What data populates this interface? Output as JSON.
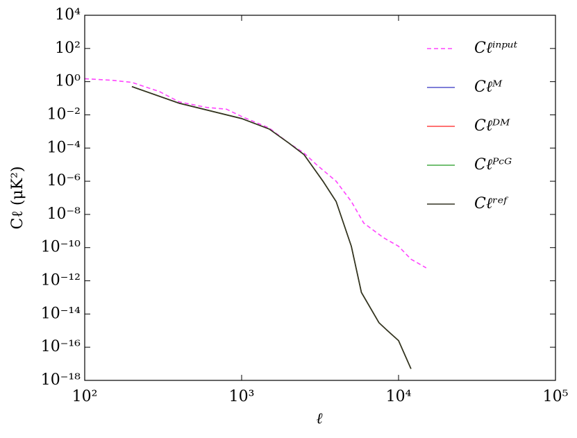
{
  "chart_data": {
    "type": "line",
    "xlabel": "ℓ",
    "ylabel": "Cℓ (μK²)",
    "xscale": "log",
    "yscale": "log",
    "xlim": [
      100,
      100000
    ],
    "ylim": [
      1e-18,
      10000
    ],
    "xticks": [
      {
        "value": 100,
        "label": "10²"
      },
      {
        "value": 1000,
        "label": "10³"
      },
      {
        "value": 10000,
        "label": "10⁴"
      },
      {
        "value": 100000,
        "label": "10⁵"
      }
    ],
    "yticks": [
      {
        "value": 1e-18,
        "label": "10⁻¹⁸"
      },
      {
        "value": 1e-16,
        "label": "10⁻¹⁶"
      },
      {
        "value": 1e-14,
        "label": "10⁻¹⁴"
      },
      {
        "value": 1e-12,
        "label": "10⁻¹²"
      },
      {
        "value": 1e-10,
        "label": "10⁻¹⁰"
      },
      {
        "value": 1e-08,
        "label": "10⁻⁸"
      },
      {
        "value": 1e-06,
        "label": "10⁻⁶"
      },
      {
        "value": 0.0001,
        "label": "10⁻⁴"
      },
      {
        "value": 0.01,
        "label": "10⁻²"
      },
      {
        "value": 1,
        "label": "10⁰"
      },
      {
        "value": 100,
        "label": "10²"
      },
      {
        "value": 10000,
        "label": "10⁴"
      }
    ],
    "legend": "upper right",
    "series": [
      {
        "name": "Cℓⁱⁿᵖᵘᵗ",
        "color": "#ff44ff",
        "dashed": true,
        "x": [
          100,
          150,
          200,
          300,
          400,
          600,
          800,
          1000,
          1500,
          2000,
          2500,
          3000,
          4000,
          5000,
          6000,
          8000,
          10000,
          12000,
          15000
        ],
        "values": [
          1.5,
          1.2,
          0.9,
          0.25,
          0.06,
          0.028,
          0.022,
          0.008,
          0.0016,
          0.0002,
          5e-05,
          1e-05,
          1e-06,
          6e-08,
          3e-09,
          4e-10,
          1.2e-10,
          2e-11,
          6e-12
        ]
      },
      {
        "name": "Cℓᴹ",
        "color": "#5555cc",
        "x": [
          200,
          400,
          1000,
          1500,
          2000,
          2500,
          3300,
          4000,
          5000,
          5800,
          7500,
          8500,
          10000,
          12000
        ],
        "values": [
          0.5,
          0.05,
          0.006,
          0.0014,
          0.0002,
          4e-05,
          1e-06,
          6e-08,
          1.2e-10,
          2e-13,
          3e-15,
          1e-15,
          2.5e-16,
          5e-18
        ]
      },
      {
        "name": "Cℓᴰᴹ",
        "color": "#ff4444",
        "x": [
          200,
          400,
          1000,
          1500,
          2000,
          2500,
          3300,
          4000,
          5000,
          5800,
          7500,
          8500,
          10000,
          12000
        ],
        "values": [
          0.5,
          0.05,
          0.006,
          0.0014,
          0.0002,
          4e-05,
          1e-06,
          6e-08,
          1.2e-10,
          2e-13,
          3e-15,
          1e-15,
          2.5e-16,
          5e-18
        ]
      },
      {
        "name": "Cℓᴾᶜᴳ",
        "color": "#44aa44",
        "x": [
          200,
          400,
          1000,
          1500,
          2000,
          2500,
          3300,
          4000,
          5000,
          5800,
          7500,
          8500,
          10000,
          12000
        ],
        "values": [
          0.5,
          0.05,
          0.006,
          0.0014,
          0.0002,
          4e-05,
          1e-06,
          6e-08,
          1.2e-10,
          2e-13,
          3e-15,
          1e-15,
          2.5e-16,
          5e-18
        ]
      },
      {
        "name": "Cℓʳᵉᶠ",
        "color": "#333322",
        "x": [
          200,
          400,
          1000,
          1500,
          2000,
          2500,
          3300,
          4000,
          5000,
          5800,
          7500,
          8500,
          10000,
          12000
        ],
        "values": [
          0.5,
          0.05,
          0.006,
          0.0014,
          0.0002,
          4e-05,
          1e-06,
          6e-08,
          1.2e-10,
          2e-13,
          3e-15,
          1e-15,
          2.5e-16,
          5e-18
        ]
      }
    ]
  }
}
